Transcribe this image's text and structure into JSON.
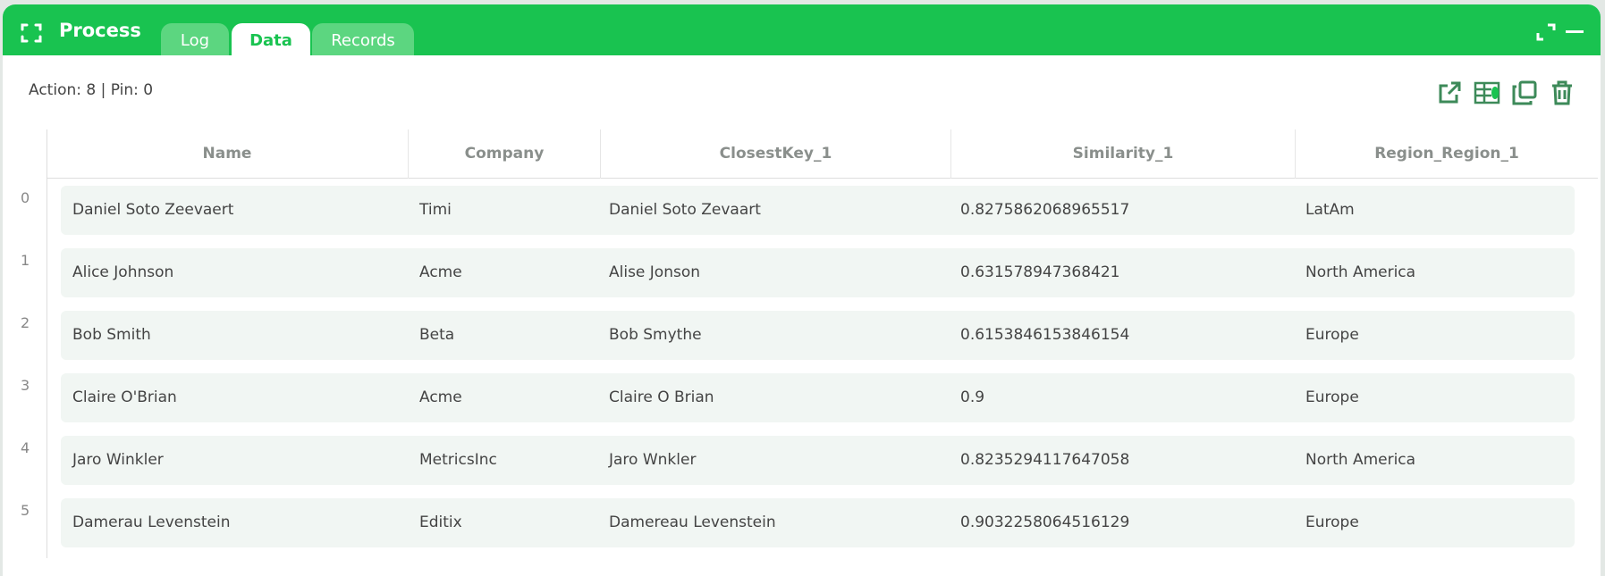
{
  "header": {
    "title": "Process",
    "tabs": [
      {
        "label": "Log"
      },
      {
        "label": "Data",
        "active": true
      },
      {
        "label": "Records"
      }
    ],
    "accent": "#19c350"
  },
  "status": "Action: 8 | Pin: 0",
  "toolbar": [
    "open-external-icon",
    "table-database-icon",
    "copy-icon",
    "trash-icon"
  ],
  "table": {
    "columns": [
      "Name",
      "Company",
      "ClosestKey_1",
      "Similarity_1",
      "Region_Region_1"
    ],
    "rows": [
      {
        "index": "0",
        "cells": [
          "Daniel Soto Zeevaert",
          "Timi",
          "Daniel Soto Zevaart",
          "0.8275862068965517",
          "LatAm"
        ]
      },
      {
        "index": "1",
        "cells": [
          "Alice Johnson",
          "Acme",
          "Alise Jonson",
          "0.631578947368421",
          "North America"
        ]
      },
      {
        "index": "2",
        "cells": [
          "Bob Smith",
          "Beta",
          "Bob Smythe",
          "0.6153846153846154",
          "Europe"
        ]
      },
      {
        "index": "3",
        "cells": [
          "Claire O'Brian",
          "Acme",
          "Claire O Brian",
          "0.9",
          "Europe"
        ]
      },
      {
        "index": "4",
        "cells": [
          "Jaro Winkler",
          "MetricsInc",
          "Jaro Wnkler",
          "0.8235294117647058",
          "North America"
        ]
      },
      {
        "index": "5",
        "cells": [
          "Damerau Levenstein",
          "Editix",
          "Damereau Levenstein",
          "0.9032258064516129",
          "Europe"
        ]
      }
    ]
  }
}
